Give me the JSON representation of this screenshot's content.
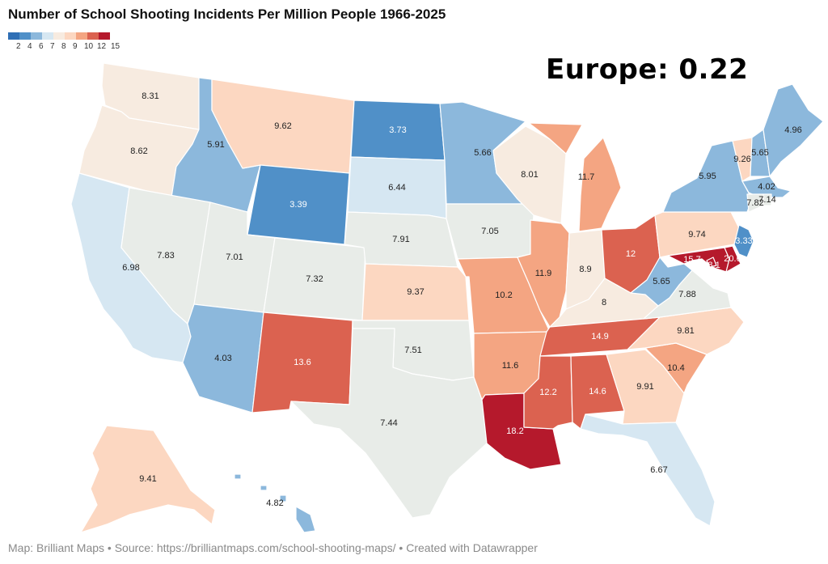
{
  "title": "Number of School Shooting Incidents Per Million People 1966-2025",
  "callout": "Europe: 0.22",
  "source": "Map: Brilliant Maps • Source: https://brilliantmaps.com/school-shooting-maps/ • Created with Datawrapper",
  "legend": {
    "colors": [
      "#2f6fb5",
      "#5090c8",
      "#8cb8dc",
      "#d6e7f2",
      "#f7ebe0",
      "#fcd7c1",
      "#f4a582",
      "#db6250",
      "#b5192c"
    ],
    "labels": [
      "2",
      "4",
      "6",
      "7",
      "8",
      "9",
      "10",
      "12",
      "15"
    ]
  },
  "states": {
    "WA": {
      "value": "8.31",
      "color": "#f7ebe0"
    },
    "OR": {
      "value": "8.62",
      "color": "#f7ebe0"
    },
    "CA": {
      "value": "6.98",
      "color": "#d6e7f2"
    },
    "ID": {
      "value": "5.91",
      "color": "#8cb8dc"
    },
    "NV": {
      "value": "7.83",
      "color": "#e8ece8"
    },
    "MT": {
      "value": "9.62",
      "color": "#fcd7c1"
    },
    "WY": {
      "value": "3.39",
      "color": "#5090c8"
    },
    "UT": {
      "value": "7.01",
      "color": "#e8ece8"
    },
    "AZ": {
      "value": "4.03",
      "color": "#8cb8dc"
    },
    "CO": {
      "value": "7.32",
      "color": "#e8ece8"
    },
    "NM": {
      "value": "13.6",
      "color": "#db6250"
    },
    "ND": {
      "value": "3.73",
      "color": "#5090c8"
    },
    "SD": {
      "value": "6.44",
      "color": "#d6e7f2"
    },
    "NE": {
      "value": "7.91",
      "color": "#e8ece8"
    },
    "KS": {
      "value": "9.37",
      "color": "#fcd7c1"
    },
    "OK": {
      "value": "7.51",
      "color": "#e8ece8"
    },
    "TX": {
      "value": "7.44",
      "color": "#e8ece8"
    },
    "MN": {
      "value": "5.66",
      "color": "#8cb8dc"
    },
    "IA": {
      "value": "7.05",
      "color": "#e8ece8"
    },
    "MO": {
      "value": "10.2",
      "color": "#f4a582"
    },
    "AR": {
      "value": "11.6",
      "color": "#f4a582"
    },
    "LA": {
      "value": "18.2",
      "color": "#b5192c"
    },
    "WI": {
      "value": "8.01",
      "color": "#f7ebe0"
    },
    "IL": {
      "value": "11.9",
      "color": "#f4a582"
    },
    "MI": {
      "value": "11.7",
      "color": "#f4a582"
    },
    "IN": {
      "value": "8.9",
      "color": "#f7ebe0"
    },
    "OH": {
      "value": "12",
      "color": "#db6250"
    },
    "KY": {
      "value": "8",
      "color": "#f7ebe0"
    },
    "TN": {
      "value": "14.9",
      "color": "#db6250"
    },
    "MS": {
      "value": "12.2",
      "color": "#db6250"
    },
    "AL": {
      "value": "14.6",
      "color": "#db6250"
    },
    "GA": {
      "value": "9.91",
      "color": "#fcd7c1"
    },
    "FL": {
      "value": "6.67",
      "color": "#d6e7f2"
    },
    "SC": {
      "value": "10.4",
      "color": "#f4a582"
    },
    "NC": {
      "value": "9.81",
      "color": "#fcd7c1"
    },
    "VA": {
      "value": "7.88",
      "color": "#e8ece8"
    },
    "WV": {
      "value": "5.65",
      "color": "#8cb8dc"
    },
    "PA": {
      "value": "9.74",
      "color": "#fcd7c1"
    },
    "NY": {
      "value": "5.95",
      "color": "#8cb8dc"
    },
    "NJ": {
      "value": "3.33",
      "color": "#5090c8"
    },
    "DE": {
      "value": "20.6",
      "color": "#b5192c"
    },
    "MD": {
      "value": "15.7",
      "color": "#b5192c"
    },
    "DC": {
      "value": "78.1",
      "color": "#b5192c"
    },
    "CT": {
      "value": "7.82",
      "color": "#e8ece8"
    },
    "RI": {
      "value": "7.14",
      "color": "#e8ece8"
    },
    "MA": {
      "value": "4.02",
      "color": "#8cb8dc"
    },
    "VT": {
      "value": "9.26",
      "color": "#fcd7c1"
    },
    "NH": {
      "value": "5.65",
      "color": "#8cb8dc"
    },
    "ME": {
      "value": "4.96",
      "color": "#8cb8dc"
    },
    "AK": {
      "value": "9.41",
      "color": "#fcd7c1"
    },
    "HI": {
      "value": "4.82",
      "color": "#8cb8dc"
    }
  }
}
